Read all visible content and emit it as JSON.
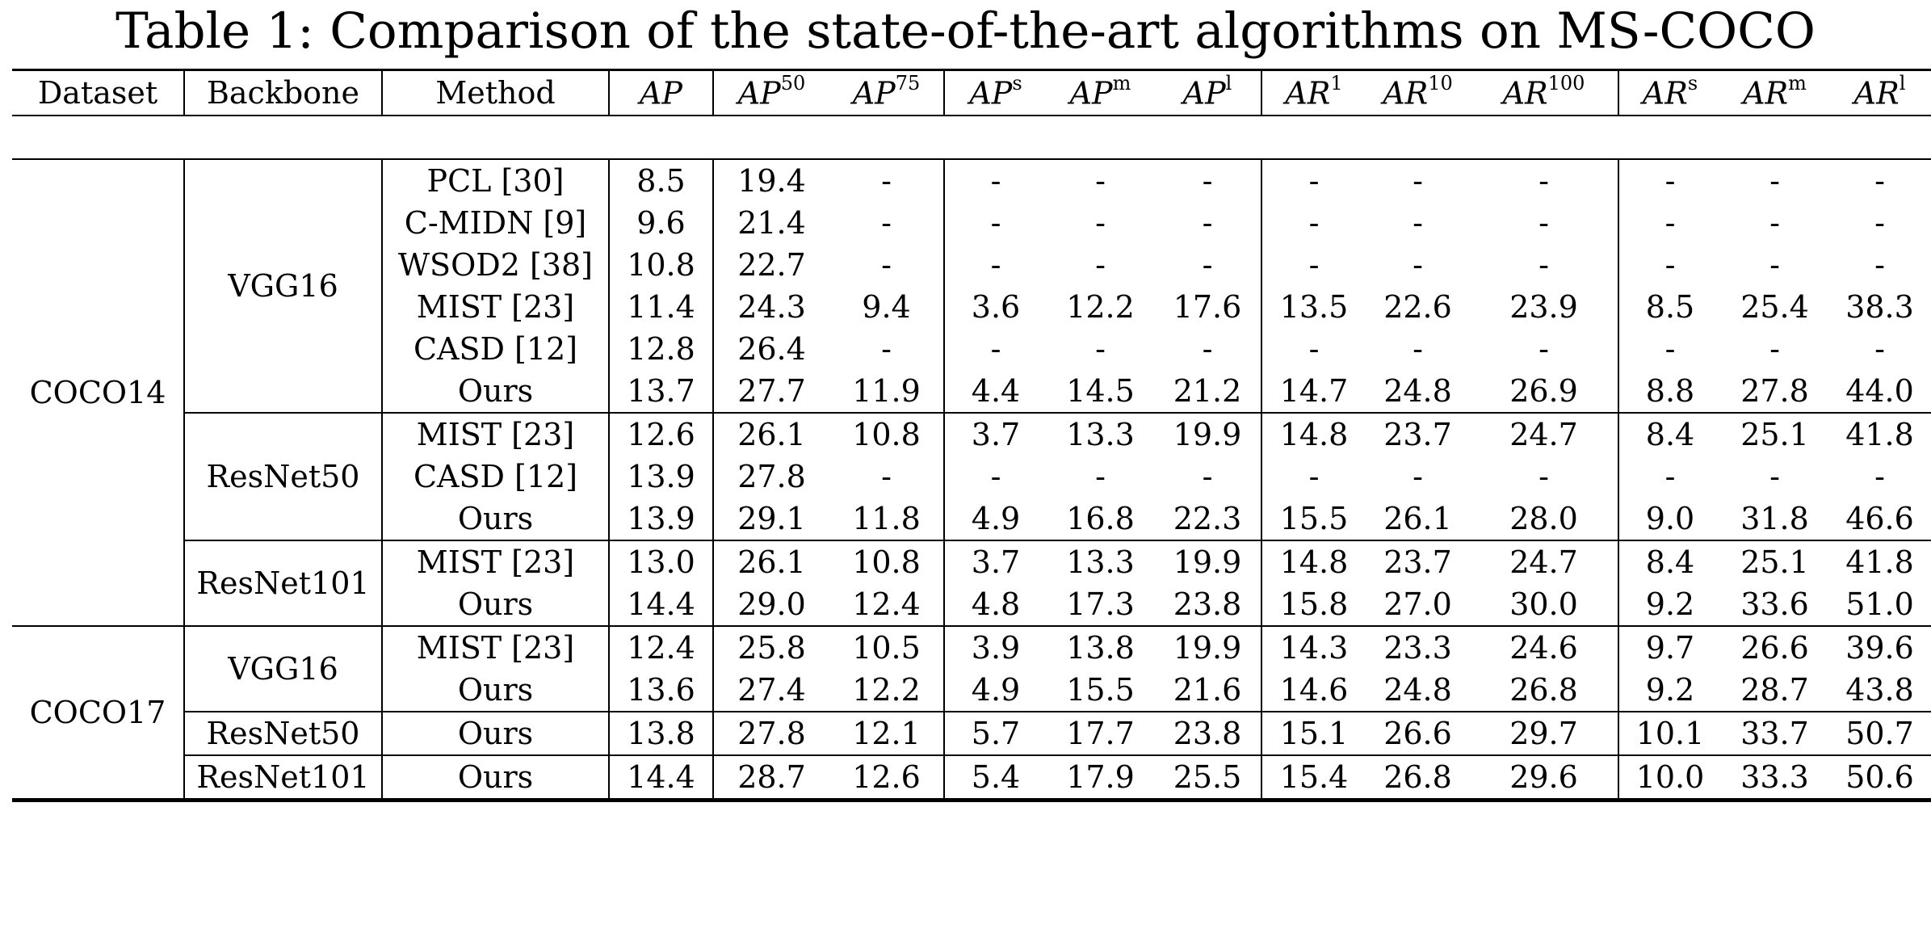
{
  "caption": "Table 1: Comparison of the state-of-the-art algorithms on MS-COCO",
  "headers": {
    "dataset": "Dataset",
    "backbone": "Backbone",
    "method": "Method",
    "metrics": [
      {
        "base": "AP",
        "sup": ""
      },
      {
        "base": "AP",
        "sup": "50"
      },
      {
        "base": "AP",
        "sup": "75"
      },
      {
        "base": "AP",
        "sup": "s"
      },
      {
        "base": "AP",
        "sup": "m"
      },
      {
        "base": "AP",
        "sup": "l"
      },
      {
        "base": "AR",
        "sup": "1"
      },
      {
        "base": "AR",
        "sup": "10"
      },
      {
        "base": "AR",
        "sup": "100"
      },
      {
        "base": "AR",
        "sup": "s"
      },
      {
        "base": "AR",
        "sup": "m"
      },
      {
        "base": "AR",
        "sup": "l"
      }
    ]
  },
  "groups": [
    {
      "dataset": "COCO14",
      "backbones": [
        {
          "name": "VGG16",
          "rows": [
            {
              "method": "PCL [30]",
              "values": [
                "8.5",
                "19.4",
                "-",
                "-",
                "-",
                "-",
                "-",
                "-",
                "-",
                "-",
                "-",
                "-"
              ],
              "bold": []
            },
            {
              "method": "C-MIDN [9]",
              "values": [
                "9.6",
                "21.4",
                "-",
                "-",
                "-",
                "-",
                "-",
                "-",
                "-",
                "-",
                "-",
                "-"
              ],
              "bold": []
            },
            {
              "method": "WSOD2 [38]",
              "values": [
                "10.8",
                "22.7",
                "-",
                "-",
                "-",
                "-",
                "-",
                "-",
                "-",
                "-",
                "-",
                "-"
              ],
              "bold": []
            },
            {
              "method": "MIST [23]",
              "values": [
                "11.4",
                "24.3",
                "9.4",
                "3.6",
                "12.2",
                "17.6",
                "13.5",
                "22.6",
                "23.9",
                "8.5",
                "25.4",
                "38.3"
              ],
              "bold": []
            },
            {
              "method": "CASD [12]",
              "values": [
                "12.8",
                "26.4",
                "-",
                "-",
                "-",
                "-",
                "-",
                "-",
                "-",
                "-",
                "-",
                "-"
              ],
              "bold": []
            },
            {
              "method": "Ours",
              "values": [
                "13.7",
                "27.7",
                "11.9",
                "4.4",
                "14.5",
                "21.2",
                "14.7",
                "24.8",
                "26.9",
                "8.8",
                "27.8",
                "44.0"
              ],
              "bold": [
                0,
                1,
                2,
                3,
                4,
                5,
                6,
                7,
                8,
                9,
                10,
                11
              ]
            }
          ]
        },
        {
          "name": "ResNet50",
          "rows": [
            {
              "method": "MIST [23]",
              "values": [
                "12.6",
                "26.1",
                "10.8",
                "3.7",
                "13.3",
                "19.9",
                "14.8",
                "23.7",
                "24.7",
                "8.4",
                "25.1",
                "41.8"
              ],
              "bold": []
            },
            {
              "method": "CASD [12]",
              "values": [
                "13.9",
                "27.8",
                "-",
                "-",
                "-",
                "-",
                "-",
                "-",
                "-",
                "-",
                "-",
                "-"
              ],
              "bold": [
                0
              ]
            },
            {
              "method": "Ours",
              "values": [
                "13.9",
                "29.1",
                "11.8",
                "4.9",
                "16.8",
                "22.3",
                "15.5",
                "26.1",
                "28.0",
                "9.0",
                "31.8",
                "46.6"
              ],
              "bold": [
                0,
                1,
                2,
                3,
                4,
                5,
                6,
                7,
                8,
                9,
                10,
                11
              ]
            }
          ]
        },
        {
          "name": "ResNet101",
          "rows": [
            {
              "method": "MIST [23]",
              "values": [
                "13.0",
                "26.1",
                "10.8",
                "3.7",
                "13.3",
                "19.9",
                "14.8",
                "23.7",
                "24.7",
                "8.4",
                "25.1",
                "41.8"
              ],
              "bold": []
            },
            {
              "method": "Ours",
              "values": [
                "14.4",
                "29.0",
                "12.4",
                "4.8",
                "17.3",
                "23.8",
                "15.8",
                "27.0",
                "30.0",
                "9.2",
                "33.6",
                "51.0"
              ],
              "bold": [
                0,
                1,
                2,
                3,
                4,
                5,
                6,
                7,
                8,
                9,
                10,
                11
              ]
            }
          ]
        }
      ]
    },
    {
      "dataset": "COCO17",
      "backbones": [
        {
          "name": "VGG16",
          "rows": [
            {
              "method": "MIST [23]",
              "values": [
                "12.4",
                "25.8",
                "10.5",
                "3.9",
                "13.8",
                "19.9",
                "14.3",
                "23.3",
                "24.6",
                "9.7",
                "26.6",
                "39.6"
              ],
              "bold": [
                9
              ]
            },
            {
              "method": "Ours",
              "values": [
                "13.6",
                "27.4",
                "12.2",
                "4.9",
                "15.5",
                "21.6",
                "14.6",
                "24.8",
                "26.8",
                "9.2",
                "28.7",
                "43.8"
              ],
              "bold": [
                0,
                1,
                2,
                3,
                4,
                5,
                6,
                7,
                8,
                10,
                11
              ]
            }
          ]
        },
        {
          "name": "ResNet50",
          "rows": [
            {
              "method": "Ours",
              "values": [
                "13.8",
                "27.8",
                "12.1",
                "5.7",
                "17.7",
                "23.8",
                "15.1",
                "26.6",
                "29.7",
                "10.1",
                "33.7",
                "50.7"
              ],
              "bold": []
            }
          ]
        },
        {
          "name": "ResNet101",
          "rows": [
            {
              "method": "Ours",
              "values": [
                "14.4",
                "28.7",
                "12.6",
                "5.4",
                "17.9",
                "25.5",
                "15.4",
                "26.8",
                "29.6",
                "10.0",
                "33.3",
                "50.6"
              ],
              "bold": []
            }
          ]
        }
      ]
    }
  ]
}
